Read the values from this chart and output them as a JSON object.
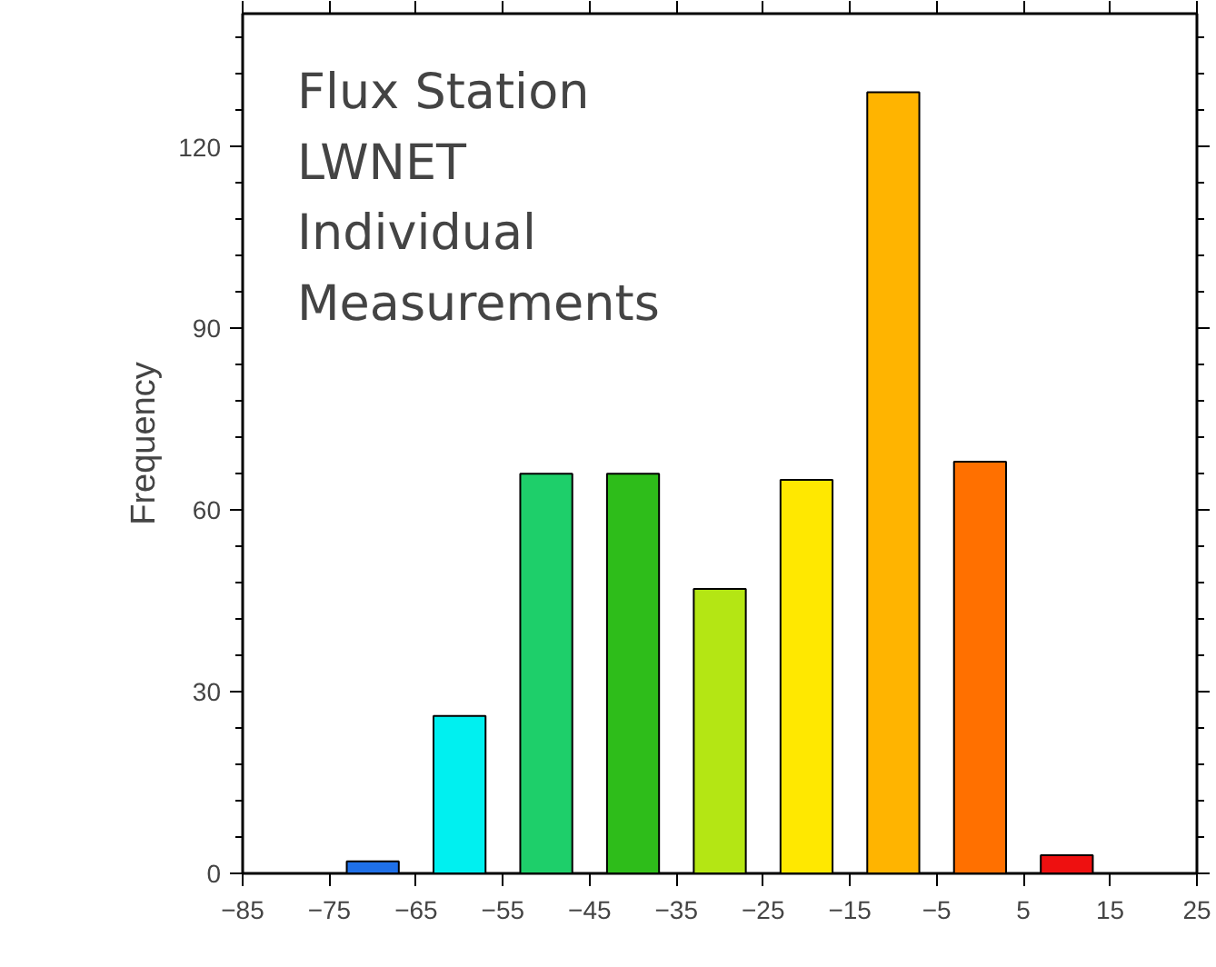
{
  "chart_data": {
    "type": "histogram",
    "ylabel": "Frequency",
    "bins": [
      -85,
      -75,
      -65,
      -55,
      -45,
      -35,
      -25,
      -15,
      -5,
      5,
      15,
      25
    ],
    "values": [
      0,
      2,
      26,
      66,
      66,
      47,
      65,
      129,
      68,
      3,
      0
    ],
    "colors": [
      null,
      "#1f70e8",
      "#00f0f0",
      "#1ecf6a",
      "#2ebd1a",
      "#b4e614",
      "#ffe800",
      "#ffb400",
      "#ff7000",
      "#ee1010",
      null
    ],
    "xlim": [
      -85,
      25
    ],
    "ylim": [
      0,
      142
    ],
    "xticks": [
      -85,
      -75,
      -65,
      -55,
      -45,
      -35,
      -25,
      -15,
      -5,
      5,
      15,
      25
    ],
    "yticks": [
      0,
      30,
      60,
      90,
      120
    ],
    "grid": false,
    "annotations": [
      "Flux Station\nLWNET\nIndividual\nMeasurements"
    ]
  }
}
